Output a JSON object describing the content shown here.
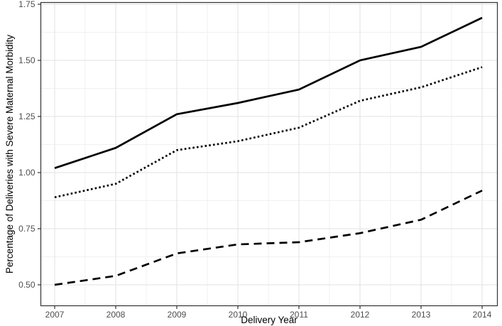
{
  "chart_data": {
    "type": "line",
    "title": "",
    "xlabel": "Delivery Year",
    "ylabel": "Percentage of Deliveries with Severe Maternal Morbidity",
    "x": [
      2007,
      2008,
      2009,
      2010,
      2011,
      2012,
      2013,
      2014
    ],
    "series": [
      {
        "name": "solid-line",
        "dash": "solid",
        "values": [
          1.02,
          1.11,
          1.26,
          1.31,
          1.37,
          1.5,
          1.56,
          1.69
        ]
      },
      {
        "name": "dotted-line",
        "dash": "dotted",
        "values": [
          0.89,
          0.95,
          1.1,
          1.14,
          1.2,
          1.32,
          1.38,
          1.47
        ]
      },
      {
        "name": "dashed-line",
        "dash": "dashed",
        "values": [
          0.5,
          0.54,
          0.64,
          0.68,
          0.69,
          0.73,
          0.79,
          0.92
        ]
      }
    ],
    "y_ticks": [
      {
        "label": "0.50",
        "value": 0.5
      },
      {
        "label": "0.75",
        "value": 0.75
      },
      {
        "label": "1.00",
        "value": 1.0
      },
      {
        "label": "1.25",
        "value": 1.25
      },
      {
        "label": "1.50",
        "value": 1.5
      },
      {
        "label": "1.75",
        "value": 1.75
      }
    ],
    "x_ticks": [
      {
        "label": "2007",
        "value": 2007
      },
      {
        "label": "2008",
        "value": 2008
      },
      {
        "label": "2009",
        "value": 2009
      },
      {
        "label": "2010",
        "value": 2010
      },
      {
        "label": "2011",
        "value": 2011
      },
      {
        "label": "2012",
        "value": 2012
      },
      {
        "label": "2013",
        "value": 2013
      },
      {
        "label": "2014",
        "value": 2014
      }
    ],
    "ylim": [
      0.44,
      1.76
    ],
    "xlim": [
      2006.77,
      2014.25
    ],
    "grid": "major+minor",
    "legend": "none",
    "colors": {
      "line": "#000000",
      "grid_major": "#e2e2e2",
      "grid_minor": "#f0f0f0",
      "panel_border": "#333333",
      "tick_mark": "#333333",
      "tick_label": "#4d4d4d",
      "axis_title": "#000000",
      "background": "#ffffff"
    }
  }
}
